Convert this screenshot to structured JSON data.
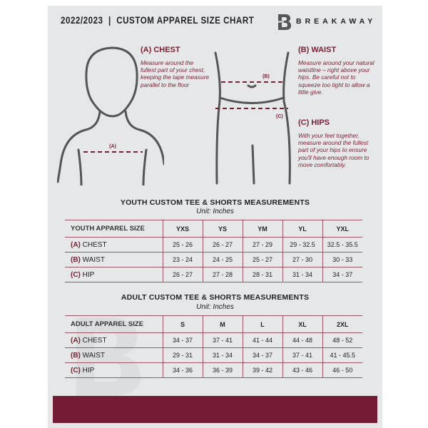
{
  "header": {
    "title": "2022/2023  |  CUSTOM APPAREL SIZE CHART",
    "brand": "BREAKAWAY",
    "logo_letter": "B"
  },
  "measures": {
    "chest": {
      "title": "(A) CHEST",
      "desc": "Measure around the fullest part of your chest, keeping the tape measure parallel to the floor",
      "marker": "(A)"
    },
    "waist": {
      "title": "(B) WAIST",
      "desc": "Measure around your natural waistline – right above your hips. Be careful not to squeeze too tight to allow a little give.",
      "marker": "(B)"
    },
    "hips": {
      "title": "(C) HIPS",
      "desc": "With your feet together, measure around the fullest part of your hips to ensure you'll have enough room to move comfortably.",
      "marker": "(C)"
    }
  },
  "youth": {
    "title": "YOUTH CUSTOM TEE & SHORTS MEASUREMENTS",
    "unit": "Unit: Inches",
    "header_label": "YOUTH APPAREL SIZE",
    "sizes": [
      "YXS",
      "YS",
      "YM",
      "YL",
      "YXL"
    ],
    "rows": [
      {
        "key": "(A)",
        "label": "CHEST",
        "values": [
          "25 - 26",
          "26 - 27",
          "27 - 29",
          "29 - 32.5",
          "32.5 - 35.5"
        ]
      },
      {
        "key": "(B)",
        "label": "WAIST",
        "values": [
          "23 - 24",
          "24 - 25",
          "25 - 27",
          "27 - 30",
          "30 - 33"
        ]
      },
      {
        "key": "(C)",
        "label": "HIP",
        "values": [
          "26 - 27",
          "27 - 28",
          "28 - 31",
          "31 - 34",
          "34 - 37"
        ]
      }
    ]
  },
  "adult": {
    "title": "ADULT CUSTOM TEE & SHORTS MEASUREMENTS",
    "unit": "Unit: Inches",
    "header_label": "ADULT APPAREL SIZE",
    "sizes": [
      "S",
      "M",
      "L",
      "XL",
      "2XL"
    ],
    "rows": [
      {
        "key": "(A)",
        "label": "CHEST",
        "values": [
          "34 - 37",
          "37 - 41",
          "41 - 44",
          "44 - 48",
          "48 - 52"
        ]
      },
      {
        "key": "(B)",
        "label": "WAIST",
        "values": [
          "29 - 31",
          "31 - 34",
          "34 - 37",
          "37 - 41",
          "41 - 45.5"
        ]
      },
      {
        "key": "(C)",
        "label": "HIP",
        "values": [
          "34 - 36",
          "36 - 39",
          "39 - 42",
          "43 - 46",
          "46 - 50"
        ]
      }
    ]
  },
  "colors": {
    "accent": "#741c33",
    "background": "#e6e7e8"
  }
}
